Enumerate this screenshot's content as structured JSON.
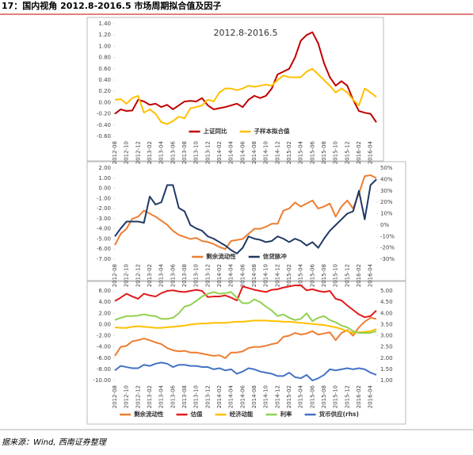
{
  "figure_title": "17：国内视角 2012.8-2016.5 市场周期拟合值及因子",
  "source": "据来源：Wind, 西南证券整理",
  "chart_data": [
    {
      "type": "line",
      "title": "2012.8-2016.5",
      "categories": [
        "2012-08",
        null,
        "2012-10",
        null,
        "2012-12",
        null,
        "2013-02",
        null,
        "2013-04",
        null,
        "2013-06",
        null,
        "2013-08",
        null,
        "2013-10",
        null,
        "2013-12",
        null,
        "2014-02",
        null,
        "2014-04",
        null,
        "2014-06",
        null,
        "2014-08",
        null,
        "2014-10",
        null,
        "2014-12",
        null,
        "2015-02",
        null,
        "2015-04",
        null,
        "2015-06",
        null,
        "2015-08",
        null,
        "2015-10",
        null,
        "2015-12",
        null,
        "2016-02",
        null,
        "2016-04",
        null
      ],
      "ylim": [
        -0.6,
        1.4
      ],
      "yticks": [
        {
          "value": 1.4,
          "label": "1.40"
        },
        {
          "value": 1.2,
          "label": "1.20"
        },
        {
          "value": 1.0,
          "label": "1.00"
        },
        {
          "value": 0.8,
          "label": "0.80"
        },
        {
          "value": 0.6,
          "label": "0.60"
        },
        {
          "value": 0.4,
          "label": "0.40"
        },
        {
          "value": 0.2,
          "label": "0.20"
        },
        {
          "value": 0,
          "label": "0.00"
        },
        {
          "value": -0.2,
          "label": "-0.20"
        },
        {
          "value": -0.4,
          "label": "-0.40"
        },
        {
          "value": -0.6,
          "label": "-0.60"
        }
      ],
      "series": [
        {
          "name": "上证同比",
          "color": "#c00000",
          "values": [
            -0.2,
            -0.12,
            -0.15,
            -0.14,
            0.05,
            0.02,
            -0.04,
            -0.02,
            -0.08,
            -0.04,
            -0.12,
            -0.05,
            0.02,
            0.03,
            0.02,
            0.08,
            -0.05,
            -0.12,
            -0.1,
            -0.08,
            -0.05,
            -0.02,
            -0.08,
            0.05,
            0.12,
            0.08,
            0.12,
            0.25,
            0.5,
            0.55,
            0.6,
            0.8,
            1.1,
            1.2,
            1.25,
            1.05,
            0.7,
            0.45,
            0.3,
            0.38,
            0.3,
            0.05,
            -0.15,
            -0.18,
            -0.2,
            -0.35
          ]
        },
        {
          "name": "子样本拟合值",
          "color": "#ffc000",
          "values": [
            0.05,
            0.06,
            -0.02,
            0.08,
            0.12,
            -0.18,
            -0.12,
            -0.2,
            -0.35,
            -0.38,
            -0.33,
            -0.25,
            -0.28,
            -0.1,
            -0.08,
            -0.05,
            0.05,
            0.02,
            0.18,
            0.25,
            0.25,
            0.22,
            0.25,
            0.3,
            0.28,
            0.3,
            0.32,
            0.3,
            0.4,
            0.48,
            0.45,
            0.45,
            0.45,
            0.55,
            0.6,
            0.5,
            0.4,
            0.3,
            0.18,
            0.25,
            0.18,
            0.05,
            -0.05,
            0.25,
            0.18,
            0.1
          ]
        }
      ]
    },
    {
      "type": "line",
      "categories": [
        "2012-08",
        null,
        "2012-10",
        null,
        "2012-12",
        null,
        "2013-02",
        null,
        "2013-04",
        null,
        "2013-06",
        null,
        "2013-08",
        null,
        "2013-10",
        null,
        "2013-12",
        null,
        "2014-02",
        null,
        "2014-04",
        null,
        "2014-06",
        null,
        "2014-08",
        null,
        "2014-10",
        null,
        "2014-12",
        null,
        "2015-02",
        null,
        "2015-04",
        null,
        "2015-06",
        null,
        "2015-08",
        null,
        "2015-10",
        null,
        "2015-12",
        null,
        "2016-02",
        null,
        "2016-04",
        null
      ],
      "ylim": [
        -7,
        2
      ],
      "yticks": [
        {
          "value": 2,
          "label": "2.00"
        },
        {
          "value": 1,
          "label": "1.00"
        },
        {
          "value": 0,
          "label": "0.00"
        },
        {
          "value": -1,
          "label": "-1.00"
        },
        {
          "value": -2,
          "label": "-2.00"
        },
        {
          "value": -3,
          "label": "-3.00"
        },
        {
          "value": -4,
          "label": "-4.00"
        },
        {
          "value": -5,
          "label": "-5.00"
        },
        {
          "value": -6,
          "label": "-6.00"
        },
        {
          "value": -7,
          "label": "-7.00"
        }
      ],
      "y2lim": [
        -30,
        50
      ],
      "y2ticks": [
        {
          "value": 50,
          "label": "50%"
        },
        {
          "value": 40,
          "label": "40%"
        },
        {
          "value": 30,
          "label": "30%"
        },
        {
          "value": 20,
          "label": "20%"
        },
        {
          "value": 10,
          "label": "10%"
        },
        {
          "value": 0,
          "label": "0%"
        },
        {
          "value": -10,
          "label": "-10%"
        },
        {
          "value": -20,
          "label": "-20%"
        },
        {
          "value": -30,
          "label": "-30%"
        }
      ],
      "series": [
        {
          "name": "剩余流动性",
          "color": "#ed7d31",
          "values": [
            -5.6,
            -4.5,
            -4.0,
            -3.0,
            -2.8,
            -2.2,
            -2.5,
            -2.8,
            -3.2,
            -3.6,
            -4.2,
            -4.6,
            -4.8,
            -5.0,
            -4.9,
            -5.2,
            -5.3,
            -5.5,
            -5.8,
            -6.0,
            -5.2,
            -5.1,
            -5.0,
            -4.5,
            -4.0,
            -4.0,
            -3.8,
            -3.5,
            -3.5,
            -2.2,
            -2.0,
            -1.4,
            -1.8,
            -1.5,
            -1.2,
            -2.0,
            -1.8,
            -1.5,
            -2.8,
            -1.8,
            -1.2,
            -2.0,
            -0.5,
            1.2,
            1.3,
            1.0
          ]
        },
        {
          "name": "信贷脉冲",
          "color": "#1f3864",
          "axis": "y2",
          "values": [
            -10,
            -3,
            3,
            3,
            3,
            2,
            25,
            18,
            20,
            35,
            35,
            15,
            12,
            0,
            -3,
            -5,
            -10,
            -12,
            -15,
            -18,
            -22,
            -25,
            -20,
            -10,
            -12,
            -13,
            -15,
            -14,
            -10,
            -12,
            -15,
            -12,
            -14,
            -18,
            -15,
            -20,
            -12,
            -5,
            0,
            5,
            10,
            12,
            30,
            5,
            35,
            40
          ]
        }
      ]
    },
    {
      "type": "line",
      "categories": [
        "2012-08",
        null,
        "2012-10",
        null,
        "2012-12",
        null,
        "2013-02",
        null,
        "2013-04",
        null,
        "2013-06",
        null,
        "2013-08",
        null,
        "2013-10",
        null,
        "2013-12",
        null,
        "2014-02",
        null,
        "2014-04",
        null,
        "2014-06",
        null,
        "2014-08",
        null,
        "2014-10",
        null,
        "2014-12",
        null,
        "2015-02",
        null,
        "2015-04",
        null,
        "2015-06",
        null,
        "2015-08",
        null,
        "2015-10",
        null,
        "2015-12",
        null,
        "2016-02",
        null,
        "2016-04",
        null
      ],
      "ylim": [
        -10,
        6
      ],
      "yticks": [
        {
          "value": 6,
          "label": "6.00"
        },
        {
          "value": 4,
          "label": "4.00"
        },
        {
          "value": 2,
          "label": "2.00"
        },
        {
          "value": 0,
          "label": "0.00"
        },
        {
          "value": -2,
          "label": "-2.00"
        },
        {
          "value": -4,
          "label": "-4.00"
        },
        {
          "value": -6,
          "label": "-6.00"
        },
        {
          "value": -8,
          "label": "-8.00"
        },
        {
          "value": -10,
          "label": "-10.00"
        }
      ],
      "y2lim": [
        1,
        5
      ],
      "y2ticks": [
        {
          "value": 5,
          "label": "5.00"
        },
        {
          "value": 4.5,
          "label": "4.50"
        },
        {
          "value": 4,
          "label": "4.00"
        },
        {
          "value": 3.5,
          "label": "3.50"
        },
        {
          "value": 3,
          "label": "3.00"
        },
        {
          "value": 2.5,
          "label": "2.50"
        },
        {
          "value": 2,
          "label": "2.00"
        },
        {
          "value": 1.5,
          "label": "1.50"
        },
        {
          "value": 1,
          "label": "1.00"
        }
      ],
      "series": [
        {
          "name": "剩余流动性",
          "color": "#ed7d31",
          "values": [
            -5.6,
            -4.0,
            -3.8,
            -3.0,
            -2.8,
            -2.5,
            -2.8,
            -3.2,
            -3.5,
            -4.2,
            -4.6,
            -4.8,
            -4.7,
            -5.0,
            -5.0,
            -5.2,
            -5.4,
            -5.6,
            -5.5,
            -6.0,
            -5.0,
            -5.0,
            -4.8,
            -4.2,
            -4.0,
            -4.0,
            -3.8,
            -3.5,
            -3.3,
            -2.2,
            -2.0,
            -1.5,
            -1.8,
            -1.6,
            -1.2,
            -1.8,
            -1.6,
            -1.4,
            -2.8,
            -1.5,
            -1.0,
            -2.0,
            -0.5,
            0.5,
            1.2,
            1.0
          ]
        },
        {
          "name": "估值",
          "color": "#e31a1c",
          "values": [
            4.2,
            4.8,
            5.5,
            5.0,
            4.6,
            5.5,
            5.2,
            5.0,
            5.6,
            6.0,
            6.1,
            5.9,
            5.8,
            6.0,
            6.2,
            6.0,
            4.9,
            5.0,
            5.0,
            5.2,
            4.8,
            4.3,
            6.8,
            6.5,
            6.2,
            6.0,
            5.8,
            6.2,
            6.3,
            6.6,
            6.8,
            7.0,
            7.0,
            6.1,
            6.3,
            6.0,
            5.8,
            6.0,
            4.6,
            4.3,
            3.4,
            2.6,
            1.8,
            1.3,
            1.5,
            2.5
          ]
        },
        {
          "name": "经济动能",
          "color": "#ffc000",
          "values": [
            -0.5,
            -0.6,
            -0.6,
            -0.4,
            -0.3,
            -0.4,
            -0.5,
            -0.6,
            -0.6,
            -0.5,
            -0.4,
            -0.3,
            -0.2,
            0.0,
            0.1,
            0.2,
            0.2,
            0.3,
            0.3,
            0.3,
            0.4,
            0.5,
            0.5,
            0.6,
            0.7,
            0.7,
            0.7,
            0.6,
            0.6,
            0.5,
            0.5,
            0.4,
            0.3,
            0.2,
            0.1,
            0.0,
            -0.1,
            -0.3,
            -0.5,
            -0.8,
            -1.2,
            -1.5,
            -1.4,
            -1.3,
            -1.2,
            -0.8
          ]
        },
        {
          "name": "利率",
          "color": "#92d050",
          "values": [
            0.8,
            1.2,
            1.5,
            1.5,
            1.6,
            1.8,
            1.6,
            1.5,
            1.0,
            1.0,
            1.2,
            2.0,
            3.2,
            3.5,
            4.2,
            5.0,
            5.5,
            5.8,
            5.5,
            5.6,
            5.8,
            4.8,
            3.8,
            3.8,
            4.5,
            4.0,
            3.2,
            2.5,
            1.5,
            1.8,
            1.2,
            0.8,
            1.0,
            2.0,
            0.6,
            1.2,
            1.5,
            0.8,
            0.4,
            -0.2,
            -0.5,
            -1.2,
            -1.5,
            -1.5,
            -1.5,
            -1.2
          ]
        },
        {
          "name": "货币供应(rhs)",
          "color": "#4472c4",
          "axis": "y2",
          "values": [
            1.45,
            1.65,
            1.6,
            1.55,
            1.55,
            1.7,
            1.65,
            1.75,
            1.8,
            1.75,
            1.6,
            1.7,
            1.7,
            1.65,
            1.65,
            1.6,
            1.6,
            1.5,
            1.55,
            1.45,
            1.5,
            1.3,
            1.4,
            1.55,
            1.5,
            1.4,
            1.35,
            1.3,
            1.2,
            1.2,
            1.35,
            1.15,
            1.1,
            1.25,
            1.0,
            1.1,
            1.25,
            1.5,
            1.45,
            1.5,
            1.55,
            1.5,
            1.55,
            1.5,
            1.35,
            1.25
          ]
        }
      ]
    }
  ]
}
